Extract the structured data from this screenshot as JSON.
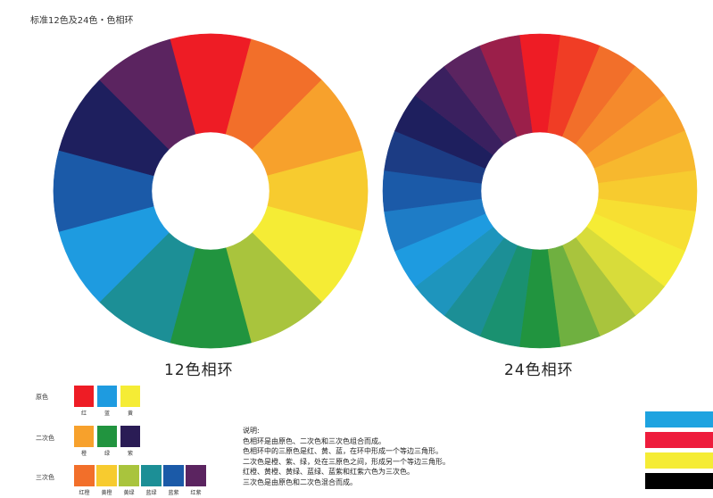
{
  "page": {
    "title": "标准12色及24色・色相环"
  },
  "wheel12": {
    "caption": "12色相环",
    "colors": [
      "#ee1c25",
      "#f26f2a",
      "#f7a12c",
      "#f7cb2f",
      "#f5ec35",
      "#a9c43d",
      "#21943f",
      "#1c8f96",
      "#1e9be0",
      "#1b5aa8",
      "#1e1f5e",
      "#5b2460"
    ]
  },
  "wheel24": {
    "caption": "24色相环",
    "colors": [
      "#ee1c25",
      "#f03d25",
      "#f26f2a",
      "#f58a2c",
      "#f7a12c",
      "#f7b82e",
      "#f7cb2f",
      "#f7df32",
      "#f5ec35",
      "#d8dc3a",
      "#a9c43d",
      "#6fb040",
      "#21943f",
      "#1a9170",
      "#1c8f96",
      "#1e95bd",
      "#1e9be0",
      "#1e7cc6",
      "#1b5aa8",
      "#1c3c84",
      "#1e1f5e",
      "#3a205f",
      "#5b2460",
      "#9b1f4a"
    ]
  },
  "legend": {
    "primary": {
      "label": "原色",
      "swatches": [
        {
          "name": "红",
          "color": "#ee1c25"
        },
        {
          "name": "蓝",
          "color": "#1e9be0"
        },
        {
          "name": "黄",
          "color": "#f5ec35"
        }
      ]
    },
    "secondary": {
      "label": "二次色",
      "swatches": [
        {
          "name": "橙",
          "color": "#f7a12c"
        },
        {
          "name": "绿",
          "color": "#21943f"
        },
        {
          "name": "紫",
          "color": "#2a1c55"
        }
      ]
    },
    "tertiary": {
      "label": "三次色",
      "swatches": [
        {
          "name": "红橙",
          "color": "#f26f2a"
        },
        {
          "name": "黄橙",
          "color": "#f7cb2f"
        },
        {
          "name": "黄绿",
          "color": "#a9c43d"
        },
        {
          "name": "蓝绿",
          "color": "#1c8f96"
        },
        {
          "name": "蓝紫",
          "color": "#1b5aa8"
        },
        {
          "name": "红紫",
          "color": "#5b2460"
        }
      ]
    }
  },
  "notes": {
    "heading": "说明:",
    "lines": [
      "色相环是由原色、二次色和三次色组合而成。",
      "色相环中的三原色是红、黄、蓝，在环中形成一个等边三角形。",
      "二次色是橙、紫、绿，处在三原色之间，形成另一个等边三角形。",
      "红橙、黄橙、黄绿、蓝绿、蓝紫和红紫六色为三次色。",
      "三次色是由原色和二次色混合而成。"
    ]
  },
  "color_bars": [
    "#1ea3e0",
    "#ee1c3c",
    "#f5ec35",
    "#000000"
  ]
}
